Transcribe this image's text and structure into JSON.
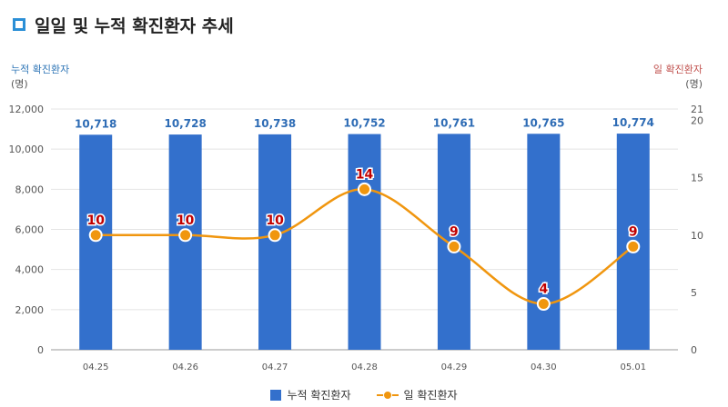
{
  "title": "일일 및 누적 확진환자 추세",
  "colors": {
    "bar": "#3370cc",
    "line": "#f0960f",
    "left_axis": "#2e75b6",
    "right_axis": "#c0504d",
    "label": "#c00000",
    "bar_label": "#2e6cb5",
    "icon": "#2b8fd6"
  },
  "chart_data": {
    "type": "bar+line",
    "categories": [
      "04.25",
      "04.26",
      "04.27",
      "04.28",
      "04.29",
      "04.30",
      "05.01"
    ],
    "series": [
      {
        "name": "누적 확진환자",
        "type": "bar",
        "axis": "left",
        "values": [
          10718,
          10728,
          10738,
          10752,
          10761,
          10765,
          10774
        ],
        "labels": [
          "10,718",
          "10,728",
          "10,738",
          "10,752",
          "10,761",
          "10,765",
          "10,774"
        ]
      },
      {
        "name": "일 확진환자",
        "type": "line",
        "axis": "right",
        "values": [
          10,
          10,
          10,
          14,
          9,
          4,
          9
        ],
        "labels": [
          "10",
          "10",
          "10",
          "14",
          "9",
          "4",
          "9"
        ]
      }
    ],
    "left_axis": {
      "title": "누적 확진환자",
      "unit": "(명)",
      "range": [
        0,
        12000
      ],
      "ticks": [
        0,
        2000,
        4000,
        6000,
        8000,
        10000,
        12000
      ],
      "tick_labels": [
        "0",
        "2,000",
        "4,000",
        "6,000",
        "8,000",
        "10,000",
        "12,000"
      ]
    },
    "right_axis": {
      "title": "일 확진환자",
      "unit": "(명)",
      "range": [
        0,
        21
      ],
      "ticks": [
        0,
        5,
        10,
        15,
        20,
        21
      ],
      "tick_labels": [
        "0",
        "5",
        "10",
        "15",
        "20",
        "21"
      ]
    },
    "grid": true,
    "legend_position": "bottom"
  }
}
